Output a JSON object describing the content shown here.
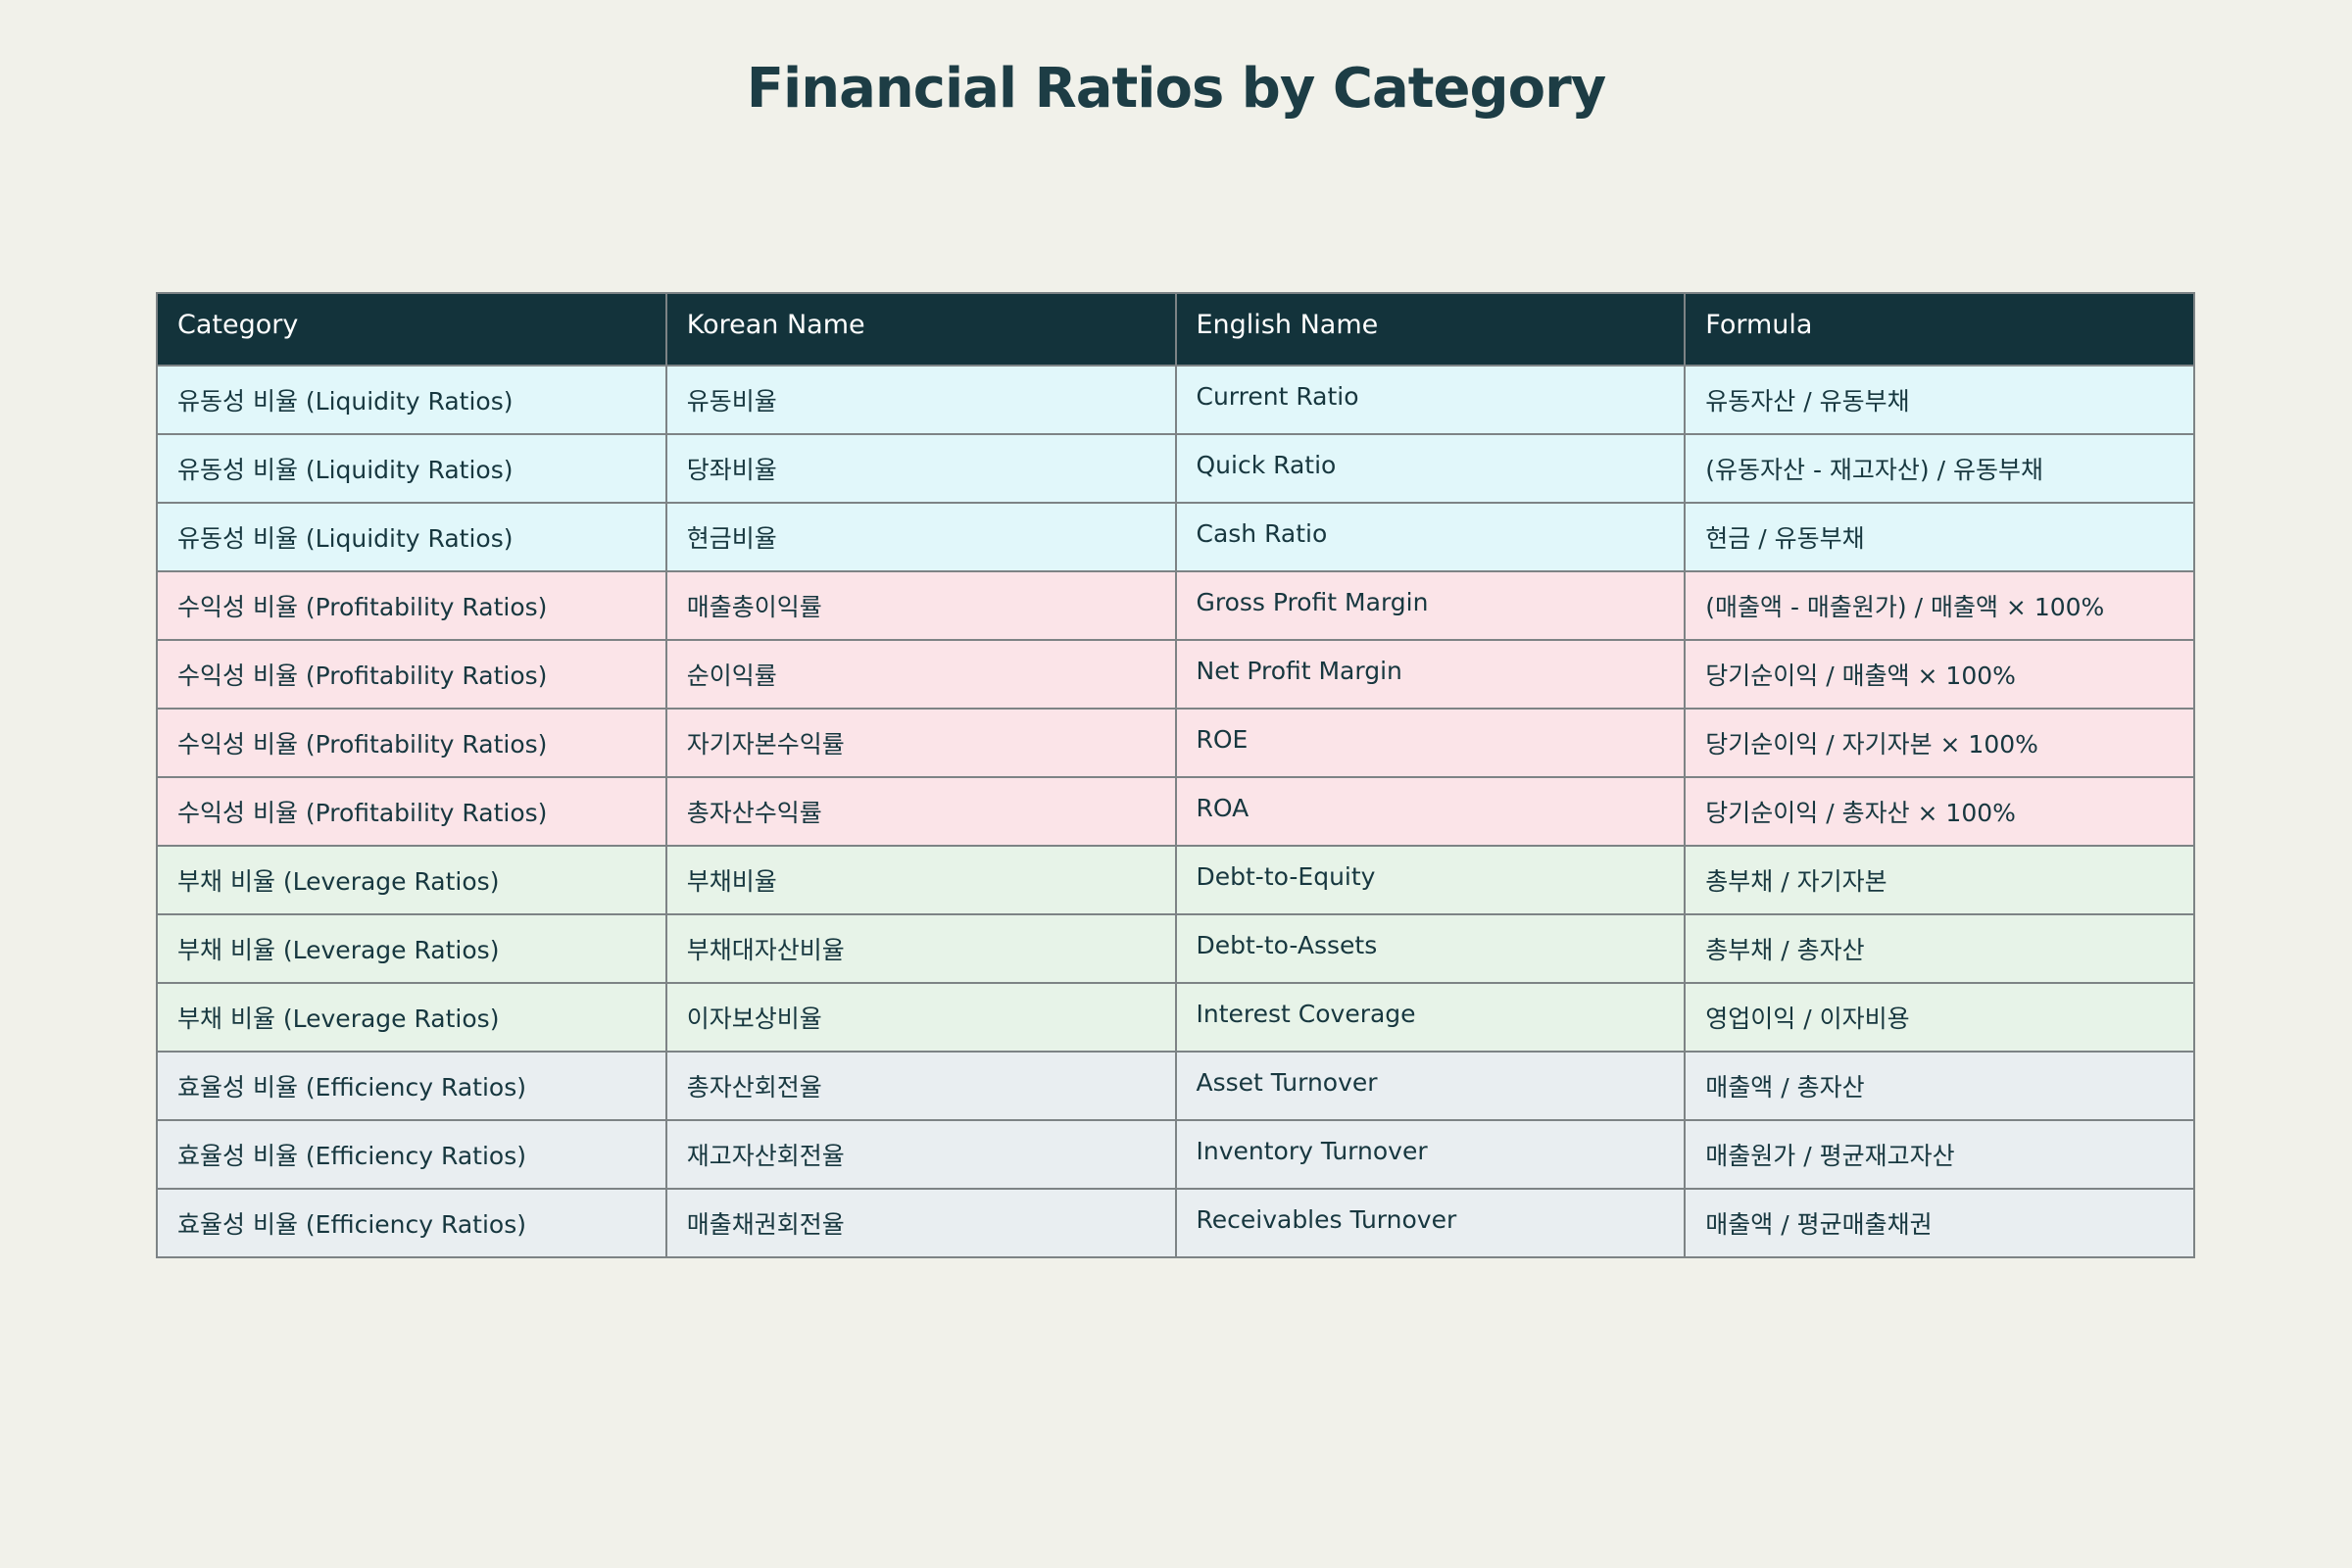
{
  "title": "Financial Ratios by Category",
  "colors": {
    "page_background": "#f1f1ea",
    "header_background": "#13333b",
    "header_text": "#ffffff",
    "body_text": "#17373f",
    "title_text": "#1d3d45",
    "border": "#7d8385",
    "row_liquidity": "#e1f7fa",
    "row_profitability": "#fbe4e8",
    "row_leverage": "#e7f3e8",
    "row_efficiency": "#e9eef1"
  },
  "chart_data": {
    "type": "table",
    "title": "Financial Ratios by Category",
    "columns": [
      "Category",
      "Korean Name",
      "English Name",
      "Formula"
    ],
    "rows": [
      {
        "category": "유동성 비율 (Liquidity Ratios)",
        "korean_name": "유동비율",
        "english_name": "Current Ratio",
        "formula": "유동자산 / 유동부채",
        "group": "liquidity"
      },
      {
        "category": "유동성 비율 (Liquidity Ratios)",
        "korean_name": "당좌비율",
        "english_name": "Quick Ratio",
        "formula": "(유동자산 - 재고자산) / 유동부채",
        "group": "liquidity"
      },
      {
        "category": "유동성 비율 (Liquidity Ratios)",
        "korean_name": "현금비율",
        "english_name": "Cash Ratio",
        "formula": "현금 / 유동부채",
        "group": "liquidity"
      },
      {
        "category": "수익성 비율 (Profitability Ratios)",
        "korean_name": "매출총이익률",
        "english_name": "Gross Profit Margin",
        "formula": "(매출액 - 매출원가) / 매출액 × 100%",
        "group": "profitability"
      },
      {
        "category": "수익성 비율 (Profitability Ratios)",
        "korean_name": "순이익률",
        "english_name": "Net Profit Margin",
        "formula": "당기순이익 / 매출액 × 100%",
        "group": "profitability"
      },
      {
        "category": "수익성 비율 (Profitability Ratios)",
        "korean_name": "자기자본수익률",
        "english_name": "ROE",
        "formula": "당기순이익 / 자기자본 × 100%",
        "group": "profitability"
      },
      {
        "category": "수익성 비율 (Profitability Ratios)",
        "korean_name": "총자산수익률",
        "english_name": "ROA",
        "formula": "당기순이익 / 총자산 × 100%",
        "group": "profitability"
      },
      {
        "category": "부채 비율 (Leverage Ratios)",
        "korean_name": "부채비율",
        "english_name": "Debt-to-Equity",
        "formula": "총부채 / 자기자본",
        "group": "leverage"
      },
      {
        "category": "부채 비율 (Leverage Ratios)",
        "korean_name": "부채대자산비율",
        "english_name": "Debt-to-Assets",
        "formula": "총부채 / 총자산",
        "group": "leverage"
      },
      {
        "category": "부채 비율 (Leverage Ratios)",
        "korean_name": "이자보상비율",
        "english_name": "Interest Coverage",
        "formula": "영업이익 / 이자비용",
        "group": "leverage"
      },
      {
        "category": "효율성 비율 (Efficiency Ratios)",
        "korean_name": "총자산회전율",
        "english_name": "Asset Turnover",
        "formula": "매출액 / 총자산",
        "group": "efficiency"
      },
      {
        "category": "효율성 비율 (Efficiency Ratios)",
        "korean_name": "재고자산회전율",
        "english_name": "Inventory Turnover",
        "formula": "매출원가 / 평균재고자산",
        "group": "efficiency"
      },
      {
        "category": "효율성 비율 (Efficiency Ratios)",
        "korean_name": "매출채권회전율",
        "english_name": "Receivables Turnover",
        "formula": "매출액 / 평균매출채권",
        "group": "efficiency"
      }
    ]
  }
}
